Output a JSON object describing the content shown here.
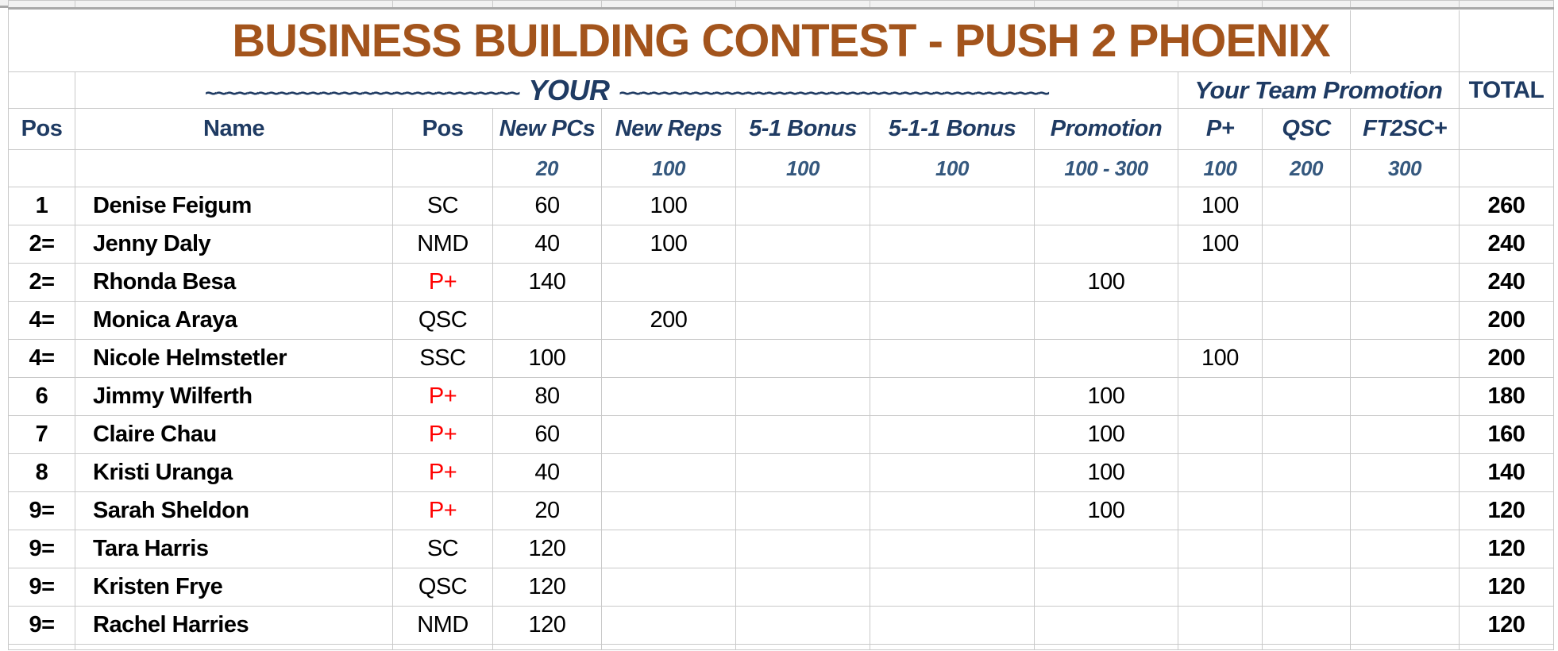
{
  "title": "BUSINESS BUILDING CONTEST - PUSH 2 PHOENIX",
  "banner": {
    "left_tildes": "~~~~~~~~~~~~~~~~~~~~~~~~~~~~~~",
    "your_label": "YOUR",
    "right_tildes": "~~~~~~~~~~~~~~~~~~~~~~~~~~~~~~~~~~~~~~~~~",
    "team_promotion_label": "Your Team Promotion",
    "total_label": "TOTAL"
  },
  "columns": [
    "Pos",
    "Name",
    "Pos",
    "New PCs",
    "New Reps",
    "5-1 Bonus",
    "5-1-1 Bonus",
    "Promotion",
    "P+",
    "QSC",
    "FT2SC+",
    ""
  ],
  "point_values": [
    "",
    "",
    "",
    "20",
    "100",
    "100",
    "100",
    "100 - 300",
    "100",
    "200",
    "300",
    ""
  ],
  "rows": [
    {
      "rank": "1",
      "name": "Denise Feigum",
      "position": "SC",
      "position_red": false,
      "new_pcs": "60",
      "new_reps": "100",
      "bonus_5_1": "",
      "bonus_5_1_1": "",
      "promotion": "",
      "p_plus": "100",
      "qsc": "",
      "ft2sc": "",
      "total": "260"
    },
    {
      "rank": "2=",
      "name": "Jenny Daly",
      "position": "NMD",
      "position_red": false,
      "new_pcs": "40",
      "new_reps": "100",
      "bonus_5_1": "",
      "bonus_5_1_1": "",
      "promotion": "",
      "p_plus": "100",
      "qsc": "",
      "ft2sc": "",
      "total": "240"
    },
    {
      "rank": "2=",
      "name": "Rhonda Besa",
      "position": "P+",
      "position_red": true,
      "new_pcs": "140",
      "new_reps": "",
      "bonus_5_1": "",
      "bonus_5_1_1": "",
      "promotion": "100",
      "p_plus": "",
      "qsc": "",
      "ft2sc": "",
      "total": "240"
    },
    {
      "rank": "4=",
      "name": "Monica Araya",
      "position": "QSC",
      "position_red": false,
      "new_pcs": "",
      "new_reps": "200",
      "bonus_5_1": "",
      "bonus_5_1_1": "",
      "promotion": "",
      "p_plus": "",
      "qsc": "",
      "ft2sc": "",
      "total": "200"
    },
    {
      "rank": "4=",
      "name": "Nicole Helmstetler",
      "position": "SSC",
      "position_red": false,
      "new_pcs": "100",
      "new_reps": "",
      "bonus_5_1": "",
      "bonus_5_1_1": "",
      "promotion": "",
      "p_plus": "100",
      "qsc": "",
      "ft2sc": "",
      "total": "200"
    },
    {
      "rank": "6",
      "name": "Jimmy Wilferth",
      "position": "P+",
      "position_red": true,
      "new_pcs": "80",
      "new_reps": "",
      "bonus_5_1": "",
      "bonus_5_1_1": "",
      "promotion": "100",
      "p_plus": "",
      "qsc": "",
      "ft2sc": "",
      "total": "180"
    },
    {
      "rank": "7",
      "name": "Claire Chau",
      "position": "P+",
      "position_red": true,
      "new_pcs": "60",
      "new_reps": "",
      "bonus_5_1": "",
      "bonus_5_1_1": "",
      "promotion": "100",
      "p_plus": "",
      "qsc": "",
      "ft2sc": "",
      "total": "160"
    },
    {
      "rank": "8",
      "name": "Kristi Uranga",
      "position": "P+",
      "position_red": true,
      "new_pcs": "40",
      "new_reps": "",
      "bonus_5_1": "",
      "bonus_5_1_1": "",
      "promotion": "100",
      "p_plus": "",
      "qsc": "",
      "ft2sc": "",
      "total": "140"
    },
    {
      "rank": "9=",
      "name": "Sarah Sheldon",
      "position": "P+",
      "position_red": true,
      "new_pcs": "20",
      "new_reps": "",
      "bonus_5_1": "",
      "bonus_5_1_1": "",
      "promotion": "100",
      "p_plus": "",
      "qsc": "",
      "ft2sc": "",
      "total": "120"
    },
    {
      "rank": "9=",
      "name": "Tara Harris",
      "position": "SC",
      "position_red": false,
      "new_pcs": "120",
      "new_reps": "",
      "bonus_5_1": "",
      "bonus_5_1_1": "",
      "promotion": "",
      "p_plus": "",
      "qsc": "",
      "ft2sc": "",
      "total": "120"
    },
    {
      "rank": "9=",
      "name": "Kristen Frye",
      "position": "QSC",
      "position_red": false,
      "new_pcs": "120",
      "new_reps": "",
      "bonus_5_1": "",
      "bonus_5_1_1": "",
      "promotion": "",
      "p_plus": "",
      "qsc": "",
      "ft2sc": "",
      "total": "120"
    },
    {
      "rank": "9=",
      "name": "Rachel Harries",
      "position": "NMD",
      "position_red": false,
      "new_pcs": "120",
      "new_reps": "",
      "bonus_5_1": "",
      "bonus_5_1_1": "",
      "promotion": "",
      "p_plus": "",
      "qsc": "",
      "ft2sc": "",
      "total": "120"
    }
  ],
  "colors": {
    "title-brown": "#A3541C",
    "navy": "#1F3B63",
    "values-blue": "#35587E",
    "red": "#FF0000",
    "grid": "#C9C9C9",
    "grid-dark": "#A9A9A9",
    "strip-bg": "#F2F2F2"
  }
}
